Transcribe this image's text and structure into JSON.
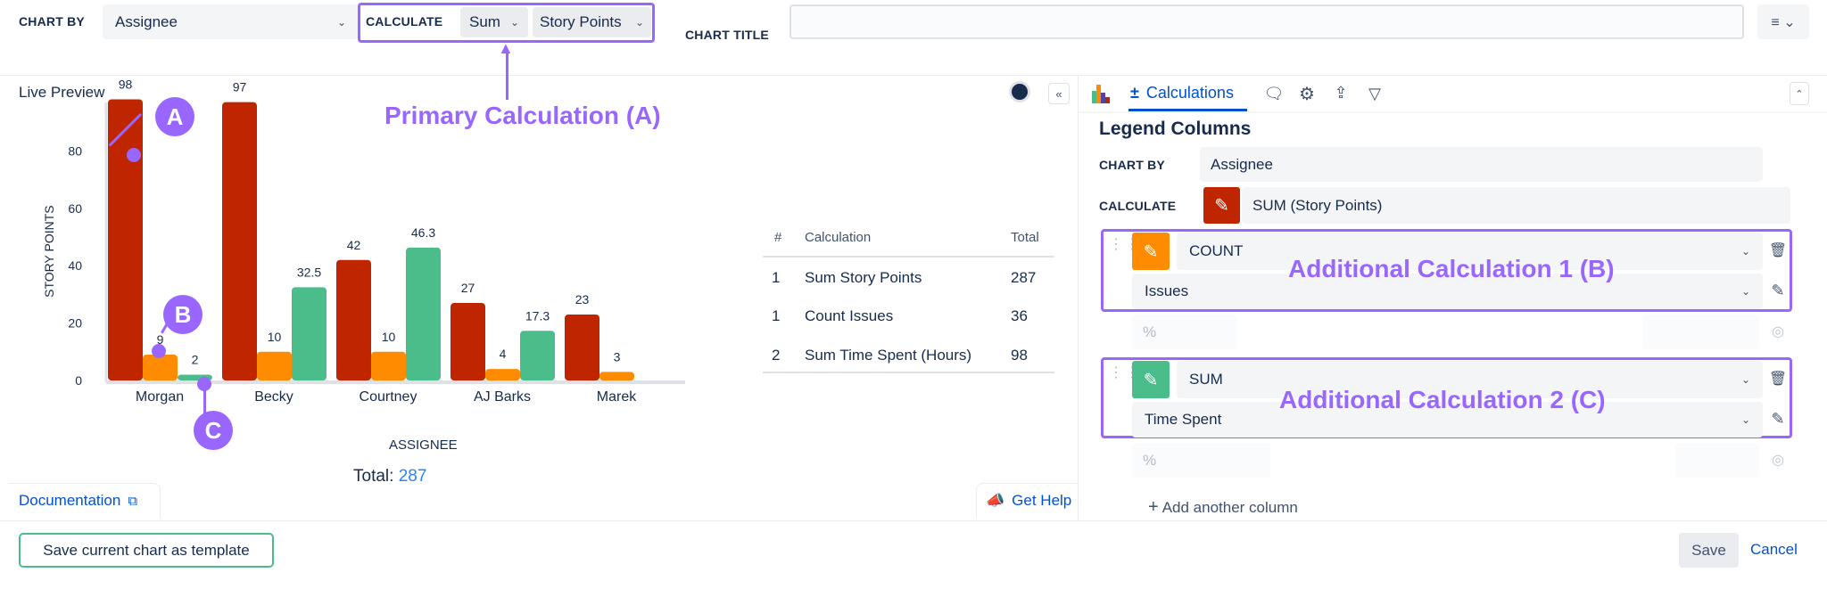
{
  "toolbar": {
    "chart_by_label": "CHART BY",
    "chart_by_value": "Assignee",
    "calculate_label": "CALCULATE",
    "calc_func": "Sum",
    "calc_field": "Story Points",
    "chart_title_label": "CHART TITLE",
    "chart_title_value": ""
  },
  "annotations": {
    "primary": "Primary Calculation (A)",
    "additional1": "Additional Calculation 1 (B)",
    "additional2": "Additional Calculation 2 (C)",
    "a": "A",
    "b": "B",
    "c": "C"
  },
  "preview": {
    "label": "Live Preview",
    "total_label": "Total:",
    "total_value": "287",
    "documentation": "Documentation",
    "get_help": "Get Help"
  },
  "chart_data": {
    "type": "bar",
    "categories": [
      "Morgan",
      "Becky",
      "Courtney",
      "AJ Barks",
      "Marek"
    ],
    "series": [
      {
        "name": "Sum Story Points",
        "color": "#bf2600",
        "values": [
          98,
          97,
          42,
          27,
          23
        ],
        "labels": [
          "98",
          "97",
          "42",
          "27",
          "23"
        ]
      },
      {
        "name": "Count Issues",
        "color": "#ff8b00",
        "values": [
          9,
          10,
          10,
          4,
          3
        ],
        "labels": [
          "9",
          "10",
          "10",
          "4",
          "3"
        ]
      },
      {
        "name": "Sum Time Spent (Hours)",
        "color": "#4bbd8a",
        "values": [
          2,
          32.5,
          46.3,
          17.3,
          null
        ],
        "labels": [
          "2",
          "32.5",
          "46.3",
          "17.3",
          ""
        ]
      }
    ],
    "xlabel": "ASSIGNEE",
    "ylabel": "STORY POINTS",
    "ylim": [
      0,
      100
    ],
    "yticks": [
      "0",
      "20",
      "40",
      "60",
      "80"
    ],
    "grid": false
  },
  "legend_table": {
    "headers": [
      "#",
      "Calculation",
      "Total"
    ],
    "rows": [
      [
        "1",
        "Sum Story Points",
        "287"
      ],
      [
        "1",
        "Count Issues",
        "36"
      ],
      [
        "2",
        "Sum Time Spent (Hours)",
        "98"
      ]
    ]
  },
  "panel": {
    "tab": "Calculations",
    "title": "Legend Columns",
    "chart_by_label": "CHART BY",
    "chart_by_value": "Assignee",
    "calculate_label": "CALCULATE",
    "calculate_value": "SUM (Story Points)",
    "calc1": {
      "func": "COUNT",
      "field": "Issues",
      "pct": "%"
    },
    "calc2": {
      "func": "SUM",
      "field": "Time Spent",
      "pct": "%"
    },
    "add_column": "Add another column"
  },
  "footer": {
    "save_template": "Save current chart as template",
    "save": "Save",
    "cancel": "Cancel"
  },
  "colors": {
    "primary": "#bf2600",
    "count": "#ff8b00",
    "sum": "#4bbd8a",
    "annotation": "#9966ff",
    "link": "#0052cc"
  }
}
